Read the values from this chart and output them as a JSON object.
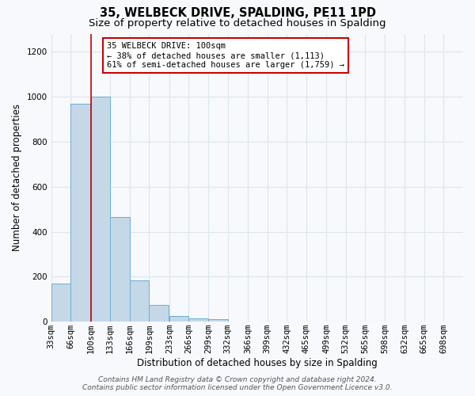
{
  "title": "35, WELBECK DRIVE, SPALDING, PE11 1PD",
  "subtitle": "Size of property relative to detached houses in Spalding",
  "xlabel": "Distribution of detached houses by size in Spalding",
  "ylabel": "Number of detached properties",
  "bin_labels": [
    "33sqm",
    "66sqm",
    "100sqm",
    "133sqm",
    "166sqm",
    "199sqm",
    "233sqm",
    "266sqm",
    "299sqm",
    "332sqm",
    "366sqm",
    "399sqm",
    "432sqm",
    "465sqm",
    "499sqm",
    "532sqm",
    "565sqm",
    "598sqm",
    "632sqm",
    "665sqm",
    "698sqm"
  ],
  "bin_edges": [
    33,
    66,
    100,
    133,
    166,
    199,
    233,
    266,
    299,
    332,
    366,
    399,
    432,
    465,
    499,
    532,
    565,
    598,
    632,
    665,
    698
  ],
  "bar_heights": [
    170,
    970,
    1000,
    465,
    185,
    75,
    25,
    15,
    10,
    0,
    0,
    0,
    0,
    0,
    0,
    0,
    0,
    0,
    0,
    0
  ],
  "bar_color": "#c5d8e8",
  "bar_edge_color": "#6aaed6",
  "marker_value": 100,
  "marker_color": "#cc0000",
  "ylim_max": 1280,
  "annotation_title": "35 WELBECK DRIVE: 100sqm",
  "annotation_line1": "← 38% of detached houses are smaller (1,113)",
  "annotation_line2": "61% of semi-detached houses are larger (1,759) →",
  "annotation_box_color": "#ffffff",
  "annotation_box_edge": "#cc0000",
  "footer1": "Contains HM Land Registry data © Crown copyright and database right 2024.",
  "footer2": "Contains public sector information licensed under the Open Government Licence v3.0.",
  "bg_color": "#f7f9fc",
  "plot_bg_color": "#f7f9fc",
  "grid_color": "#dde6ef",
  "title_fontsize": 10.5,
  "subtitle_fontsize": 9.5,
  "axis_label_fontsize": 8.5,
  "tick_fontsize": 7.5,
  "annotation_fontsize": 7.5,
  "footer_fontsize": 6.5
}
